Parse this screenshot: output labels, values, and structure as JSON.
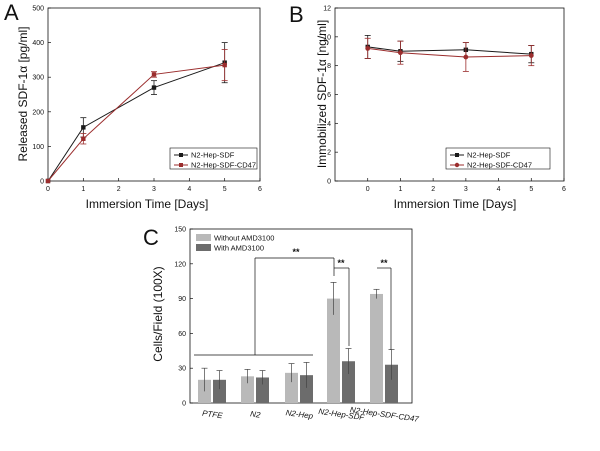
{
  "panels": {
    "a": "A",
    "b": "B",
    "c": "C"
  },
  "colors": {
    "series_black": "#1a1a1a",
    "series_red": "#9b2d2d",
    "bar_light": "#b9b9b9",
    "bar_dark": "#6c6c6c",
    "axis": "#111111"
  },
  "chart_data": [
    {
      "id": "A",
      "type": "line",
      "title": "",
      "xlabel": "Immersion Time [Days]",
      "ylabel": "Released SDF-1α [pg/ml]",
      "xlim": [
        0,
        6
      ],
      "ylim": [
        0,
        500
      ],
      "xticks": [
        0,
        1,
        2,
        3,
        4,
        5,
        6
      ],
      "yticks": [
        0,
        100,
        200,
        300,
        400,
        500
      ],
      "legend_position": "bottom-right",
      "series": [
        {
          "name": "N2-Hep-SDF",
          "color": "#1a1a1a",
          "marker": "square",
          "x": [
            0,
            1,
            3,
            5
          ],
          "y": [
            0,
            155,
            270,
            342
          ],
          "err": [
            0,
            28,
            20,
            58
          ]
        },
        {
          "name": "N2-Hep-SDF-CD47",
          "color": "#9b2d2d",
          "marker": "square",
          "x": [
            0,
            1,
            3,
            5
          ],
          "y": [
            0,
            122,
            308,
            335
          ],
          "err": [
            0,
            15,
            8,
            45
          ]
        }
      ]
    },
    {
      "id": "B",
      "type": "line",
      "title": "",
      "xlabel": "Immersion Time [Days]",
      "ylabel": "Immobilized SDF-1α [ng/ml]",
      "xlim": [
        -1,
        6
      ],
      "ylim": [
        0,
        12
      ],
      "xticks": [
        0,
        1,
        2,
        3,
        4,
        5,
        6
      ],
      "yticks": [
        0,
        2,
        4,
        6,
        8,
        10,
        12
      ],
      "legend_position": "bottom-right",
      "series": [
        {
          "name": "N2-Hep-SDF",
          "color": "#1a1a1a",
          "marker": "square",
          "x": [
            0,
            1,
            3,
            5
          ],
          "y": [
            9.3,
            9.0,
            9.1,
            8.8
          ],
          "err": [
            0.8,
            0.7,
            0.5,
            0.6
          ]
        },
        {
          "name": "N2-Hep-SDF-CD47",
          "color": "#9b2d2d",
          "marker": "circle",
          "x": [
            0,
            1,
            3,
            5
          ],
          "y": [
            9.2,
            8.9,
            8.6,
            8.7
          ],
          "err": [
            0.7,
            0.8,
            1.0,
            0.7
          ]
        }
      ]
    },
    {
      "id": "C",
      "type": "bar",
      "title": "",
      "xlabel": "",
      "ylabel": "Cells/Field (100X)",
      "ylim": [
        0,
        150
      ],
      "yticks": [
        0,
        30,
        60,
        90,
        120,
        150
      ],
      "categories": [
        "PTFE",
        "N2",
        "N2-Hep",
        "N2-Hep-SDF",
        "N2-Hep-SDF-CD47"
      ],
      "legend_position": "top-left",
      "series": [
        {
          "name": "Without AMD3100",
          "color": "#b9b9b9",
          "values": [
            20,
            23,
            26,
            90,
            94
          ],
          "err": [
            10,
            6,
            8,
            14,
            4
          ]
        },
        {
          "name": "With AMD3100",
          "color": "#6c6c6c",
          "values": [
            20,
            22,
            24,
            36,
            33
          ],
          "err": [
            8,
            6,
            11,
            11,
            13
          ]
        }
      ],
      "annotations": [
        "**",
        "**",
        "**"
      ]
    }
  ]
}
